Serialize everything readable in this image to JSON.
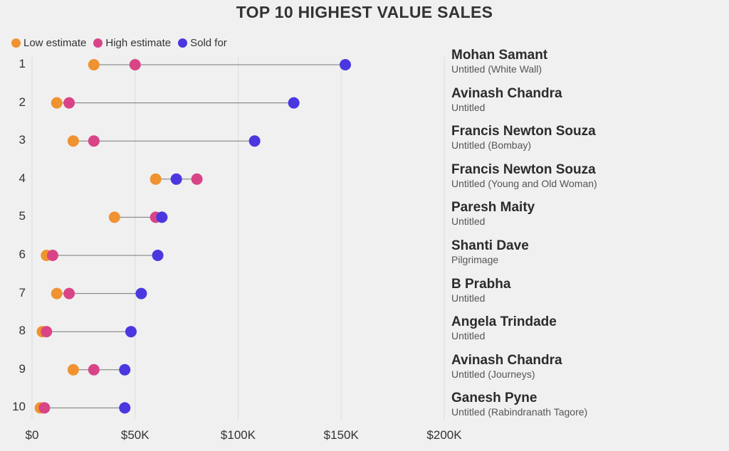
{
  "title": "TOP 10 HIGHEST VALUE SALES",
  "legend": [
    {
      "label": "Low estimate",
      "color": "#f0922f"
    },
    {
      "label": "High estimate",
      "color": "#d94487"
    },
    {
      "label": "Sold for",
      "color": "#4a37e0"
    }
  ],
  "chart_data": {
    "type": "dumbbell",
    "title": "TOP 10 HIGHEST VALUE SALES",
    "x_ticks": [
      0,
      50000,
      100000,
      150000,
      200000
    ],
    "x_tick_labels": [
      "$0",
      "$50K",
      "$100K",
      "$150K",
      "$200K"
    ],
    "xlim": [
      0,
      200000
    ],
    "series_names": [
      "Low estimate",
      "High estimate",
      "Sold for"
    ],
    "rows": [
      {
        "rank": "1",
        "artist": "Mohan Samant",
        "work": "Untitled (White Wall)",
        "low": 30000,
        "high": 50000,
        "sold": 152000
      },
      {
        "rank": "2",
        "artist": "Avinash Chandra",
        "work": "Untitled",
        "low": 12000,
        "high": 18000,
        "sold": 127000
      },
      {
        "rank": "3",
        "artist": "Francis Newton Souza",
        "work": "Untitled (Bombay)",
        "low": 20000,
        "high": 30000,
        "sold": 108000
      },
      {
        "rank": "4",
        "artist": "Francis Newton Souza",
        "work": "Untitled (Young and Old Woman)",
        "low": 60000,
        "high": 80000,
        "sold": 70000
      },
      {
        "rank": "5",
        "artist": "Paresh Maity",
        "work": "Untitled",
        "low": 40000,
        "high": 60000,
        "sold": 63000
      },
      {
        "rank": "6",
        "artist": "Shanti Dave",
        "work": "Pilgrimage",
        "low": 7000,
        "high": 10000,
        "sold": 61000
      },
      {
        "rank": "7",
        "artist": "B Prabha",
        "work": "Untitled",
        "low": 12000,
        "high": 18000,
        "sold": 53000
      },
      {
        "rank": "8",
        "artist": "Angela Trindade",
        "work": "Untitled",
        "low": 5000,
        "high": 7000,
        "sold": 48000
      },
      {
        "rank": "9",
        "artist": "Avinash Chandra",
        "work": "Untitled (Journeys)",
        "low": 20000,
        "high": 30000,
        "sold": 45000
      },
      {
        "rank": "10",
        "artist": "Ganesh Pyne",
        "work": "Untitled (Rabindranath Tagore)",
        "low": 4000,
        "high": 6000,
        "sold": 45000
      }
    ]
  }
}
